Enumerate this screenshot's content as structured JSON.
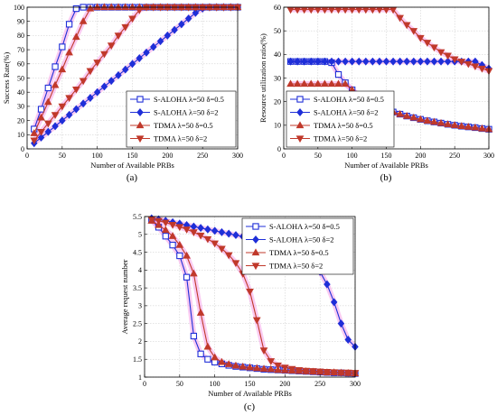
{
  "colors": {
    "s_aloha_1": "#1f2fd8",
    "s_aloha_2": "#1f2fd8",
    "tdma_1": "#c0392b",
    "tdma_2": "#c0392b",
    "marker_fill_tdma": "#c0392b",
    "highlight": "#f5a0e8"
  },
  "chart_data": [
    {
      "type": "line",
      "panel_label": "(a)",
      "xlabel": "Number of Available PRBs",
      "ylabel": "Success Rate(%)",
      "xlim": [
        0,
        300
      ],
      "ylim": [
        0,
        100
      ],
      "xticks": [
        0,
        50,
        100,
        150,
        200,
        250,
        300
      ],
      "yticks": [
        0,
        10,
        20,
        30,
        40,
        50,
        60,
        70,
        80,
        90,
        100
      ],
      "grid": true,
      "legend_position": "bottom-right",
      "series": [
        {
          "name": "S-ALOHA λ=50 δ=0.5",
          "marker": "square",
          "color": "#1f2fd8",
          "x": [
            10,
            20,
            30,
            40,
            50,
            60,
            70,
            80,
            90,
            100,
            110,
            120,
            130,
            140,
            150,
            160,
            170,
            180,
            190,
            200,
            210,
            220,
            230,
            240,
            250,
            260,
            270,
            280,
            290,
            300
          ],
          "y": [
            14,
            28,
            43,
            58,
            72,
            88,
            99,
            100,
            100,
            100,
            100,
            100,
            100,
            100,
            100,
            100,
            100,
            100,
            100,
            100,
            100,
            100,
            100,
            100,
            100,
            100,
            100,
            100,
            100,
            100
          ]
        },
        {
          "name": "S-ALOHA λ=50 δ=2",
          "marker": "diamond",
          "color": "#1f2fd8",
          "x": [
            10,
            20,
            30,
            40,
            50,
            60,
            70,
            80,
            90,
            100,
            110,
            120,
            130,
            140,
            150,
            160,
            170,
            180,
            190,
            200,
            210,
            220,
            230,
            240,
            250,
            260,
            270,
            280,
            290,
            300
          ],
          "y": [
            4,
            8,
            12,
            16,
            20,
            24,
            28,
            32,
            36,
            40,
            44,
            48,
            52,
            56,
            60,
            64,
            68,
            72,
            76,
            80,
            84,
            88,
            92,
            96,
            99,
            100,
            100,
            100,
            100,
            100
          ]
        },
        {
          "name": "TDMA λ=50 δ=0.5",
          "marker": "triangle-up",
          "color": "#c0392b",
          "x": [
            10,
            20,
            30,
            40,
            50,
            60,
            70,
            80,
            90,
            100,
            110,
            120,
            130,
            140,
            150,
            160,
            170,
            180,
            190,
            200,
            210,
            220,
            230,
            240,
            250,
            260,
            270,
            280,
            290,
            300
          ],
          "y": [
            11,
            22,
            33,
            45,
            56,
            68,
            79,
            90,
            99,
            100,
            100,
            100,
            100,
            100,
            100,
            100,
            100,
            100,
            100,
            100,
            100,
            100,
            100,
            100,
            100,
            100,
            100,
            100,
            100,
            100
          ]
        },
        {
          "name": "TDMA λ=50 δ=2",
          "marker": "triangle-down",
          "color": "#c0392b",
          "x": [
            10,
            20,
            30,
            40,
            50,
            60,
            70,
            80,
            90,
            100,
            110,
            120,
            130,
            140,
            150,
            160,
            170,
            180,
            190,
            200,
            210,
            220,
            230,
            240,
            250,
            260,
            270,
            280,
            290,
            300
          ],
          "y": [
            6,
            12,
            18,
            24,
            30,
            36,
            42,
            48,
            55,
            61,
            67,
            73,
            80,
            86,
            92,
            98,
            100,
            100,
            100,
            100,
            100,
            100,
            100,
            100,
            100,
            100,
            100,
            100,
            100,
            100
          ]
        }
      ]
    },
    {
      "type": "line",
      "panel_label": "(b)",
      "xlabel": "Number of Available PRBs",
      "ylabel": "Resource utilization ratio(%)",
      "xlim": [
        0,
        300
      ],
      "ylim": [
        0,
        60
      ],
      "xticks": [
        0,
        50,
        100,
        150,
        200,
        250,
        300
      ],
      "yticks": [
        0,
        10,
        20,
        30,
        40,
        50,
        60
      ],
      "grid": true,
      "legend_position": "bottom-left",
      "series": [
        {
          "name": "S-ALOHA λ=50 δ=0.5",
          "marker": "square",
          "color": "#1f2fd8",
          "x": [
            10,
            20,
            30,
            40,
            50,
            60,
            70,
            80,
            90,
            100,
            110,
            120,
            130,
            140,
            150,
            160,
            170,
            180,
            190,
            200,
            210,
            220,
            230,
            240,
            250,
            260,
            270,
            280,
            290,
            300
          ],
          "y": [
            37,
            37,
            37,
            37,
            37,
            37,
            36.5,
            31.5,
            28,
            25,
            22.5,
            20.5,
            19,
            17.6,
            16.5,
            15.6,
            14.7,
            13.9,
            13.2,
            12.5,
            11.9,
            11.4,
            10.9,
            10.4,
            10,
            9.6,
            9.3,
            9,
            8.6,
            8.3
          ]
        },
        {
          "name": "S-ALOHA λ=50 δ=2",
          "marker": "diamond",
          "color": "#1f2fd8",
          "x": [
            10,
            20,
            30,
            40,
            50,
            60,
            70,
            80,
            90,
            100,
            110,
            120,
            130,
            140,
            150,
            160,
            170,
            180,
            190,
            200,
            210,
            220,
            230,
            240,
            250,
            260,
            270,
            280,
            290,
            300
          ],
          "y": [
            37,
            37,
            37,
            37,
            37,
            37,
            37,
            37,
            37,
            37,
            37,
            37,
            37,
            37,
            37,
            37,
            37,
            37,
            37,
            37,
            37,
            37,
            37,
            37,
            37,
            37,
            37,
            37,
            35.5,
            34
          ]
        },
        {
          "name": "TDMA λ=50 δ=0.5",
          "marker": "triangle-up",
          "color": "#c0392b",
          "x": [
            10,
            20,
            30,
            40,
            50,
            60,
            70,
            80,
            90,
            100,
            110,
            120,
            130,
            140,
            150,
            160,
            170,
            180,
            190,
            200,
            210,
            220,
            230,
            240,
            250,
            260,
            270,
            280,
            290,
            300
          ],
          "y": [
            27.5,
            27.5,
            27.5,
            27.5,
            27.5,
            27.5,
            27.5,
            27.5,
            27.5,
            25,
            22.5,
            20.5,
            19,
            17.6,
            16.5,
            15.6,
            14.7,
            13.9,
            13.2,
            12.5,
            11.9,
            11.4,
            10.9,
            10.4,
            10,
            9.6,
            9.3,
            9,
            8.6,
            8.3
          ]
        },
        {
          "name": "TDMA λ=50 δ=2",
          "marker": "triangle-down",
          "color": "#c0392b",
          "x": [
            10,
            20,
            30,
            40,
            50,
            60,
            70,
            80,
            90,
            100,
            110,
            120,
            130,
            140,
            150,
            160,
            170,
            180,
            190,
            200,
            210,
            220,
            230,
            240,
            250,
            260,
            270,
            280,
            290,
            300
          ],
          "y": [
            59,
            59,
            59,
            59,
            59,
            59,
            59,
            59,
            59,
            59,
            59,
            59,
            59,
            59,
            59,
            59,
            55.5,
            52.5,
            50,
            47,
            45,
            43,
            41,
            39.5,
            38,
            37,
            36,
            35,
            34,
            33
          ]
        }
      ]
    },
    {
      "type": "line",
      "panel_label": "(c)",
      "xlabel": "Number of Available PRBs",
      "ylabel": "Average request number",
      "xlim": [
        0,
        300
      ],
      "ylim": [
        1,
        5.5
      ],
      "xticks": [
        0,
        50,
        100,
        150,
        200,
        250,
        300
      ],
      "yticks": [
        1,
        1.5,
        2,
        2.5,
        3,
        3.5,
        4,
        4.5,
        5,
        5.5
      ],
      "grid": true,
      "legend_position": "top-right",
      "series": [
        {
          "name": "S-ALOHA λ=50 δ=0.5",
          "marker": "square",
          "color": "#1f2fd8",
          "x": [
            10,
            20,
            30,
            40,
            50,
            60,
            70,
            80,
            90,
            100,
            110,
            120,
            130,
            140,
            150,
            160,
            170,
            180,
            190,
            200,
            210,
            220,
            230,
            240,
            250,
            260,
            270,
            280,
            290,
            300
          ],
          "y": [
            5.4,
            5.2,
            4.95,
            4.7,
            4.4,
            3.8,
            2.15,
            1.65,
            1.5,
            1.42,
            1.37,
            1.33,
            1.3,
            1.28,
            1.26,
            1.24,
            1.22,
            1.21,
            1.2,
            1.19,
            1.18,
            1.17,
            1.16,
            1.15,
            1.14,
            1.13,
            1.12,
            1.12,
            1.11,
            1.1
          ]
        },
        {
          "name": "S-ALOHA λ=50 δ=2",
          "marker": "diamond",
          "color": "#1f2fd8",
          "x": [
            10,
            20,
            30,
            40,
            50,
            60,
            70,
            80,
            90,
            100,
            110,
            120,
            130,
            140,
            150,
            160,
            170,
            180,
            190,
            200,
            210,
            220,
            230,
            240,
            250,
            260,
            270,
            280,
            290,
            300
          ],
          "y": [
            5.45,
            5.42,
            5.38,
            5.34,
            5.3,
            5.26,
            5.22,
            5.18,
            5.14,
            5.1,
            5.06,
            5.02,
            4.98,
            4.94,
            4.9,
            4.86,
            4.82,
            4.78,
            4.74,
            4.68,
            4.6,
            4.5,
            4.38,
            4.2,
            3.95,
            3.6,
            3.1,
            2.5,
            2.05,
            1.85
          ]
        },
        {
          "name": "TDMA λ=50 δ=0.5",
          "marker": "triangle-up",
          "color": "#c0392b",
          "x": [
            10,
            20,
            30,
            40,
            50,
            60,
            70,
            80,
            90,
            100,
            110,
            120,
            130,
            140,
            150,
            160,
            170,
            180,
            190,
            200,
            210,
            220,
            230,
            240,
            250,
            260,
            270,
            280,
            290,
            300
          ],
          "y": [
            5.38,
            5.26,
            5.12,
            4.95,
            4.7,
            4.4,
            3.9,
            2.8,
            1.85,
            1.55,
            1.42,
            1.36,
            1.32,
            1.29,
            1.27,
            1.25,
            1.23,
            1.22,
            1.2,
            1.19,
            1.18,
            1.17,
            1.16,
            1.15,
            1.14,
            1.13,
            1.13,
            1.12,
            1.11,
            1.1
          ]
        },
        {
          "name": "TDMA λ=50 δ=2",
          "marker": "triangle-down",
          "color": "#c0392b",
          "x": [
            10,
            20,
            30,
            40,
            50,
            60,
            70,
            80,
            90,
            100,
            110,
            120,
            130,
            140,
            150,
            160,
            170,
            180,
            190,
            200,
            210,
            220,
            230,
            240,
            250,
            260,
            270,
            280,
            290,
            300
          ],
          "y": [
            5.42,
            5.38,
            5.33,
            5.27,
            5.21,
            5.14,
            5.06,
            4.97,
            4.87,
            4.75,
            4.6,
            4.42,
            4.2,
            3.9,
            3.4,
            2.6,
            1.75,
            1.45,
            1.33,
            1.27,
            1.23,
            1.2,
            1.18,
            1.17,
            1.16,
            1.15,
            1.14,
            1.13,
            1.13,
            1.12
          ]
        }
      ]
    }
  ]
}
